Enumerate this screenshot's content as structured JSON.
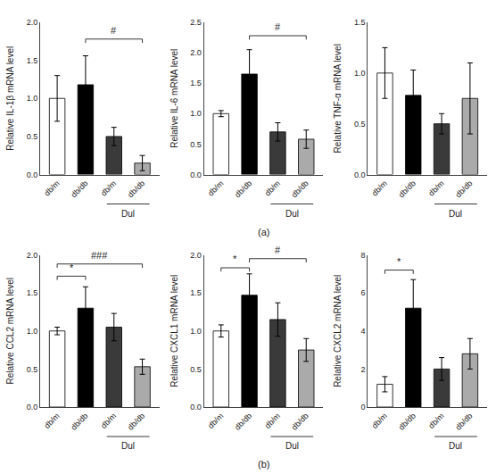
{
  "chart_data": [
    {
      "type": "bar",
      "ylabel": "Relative IL-1β mRNA level",
      "categories": [
        "db/m",
        "db/db",
        "db/m",
        "db/db"
      ],
      "values": [
        1.0,
        1.18,
        0.5,
        0.15
      ],
      "errors": [
        0.3,
        0.38,
        0.12,
        0.1
      ],
      "colors": [
        "white",
        "black",
        "#3a3a3a",
        "#aaaaaa"
      ],
      "ylim": [
        0,
        2.0
      ],
      "yticks": [
        {
          "value": 0,
          "label": "0.0"
        },
        0.5,
        {
          "value": 1,
          "label": "1.0"
        },
        1.5,
        {
          "value": 2,
          "label": "2.0"
        }
      ],
      "grid": false,
      "annotations": [
        {
          "text": "#",
          "x": [
            1,
            3
          ],
          "y": 1.78
        },
        {
          "text": "Dul",
          "x": [
            2,
            3
          ]
        }
      ]
    },
    {
      "type": "bar",
      "ylabel": "Relative IL-6 mRNA level",
      "categories": [
        "db/m",
        "db/db",
        "db/m",
        "db/db"
      ],
      "values": [
        1.0,
        1.65,
        0.7,
        0.58
      ],
      "errors": [
        0.05,
        0.4,
        0.15,
        0.15
      ],
      "colors": [
        "white",
        "black",
        "#3a3a3a",
        "#aaaaaa"
      ],
      "ylim": [
        0,
        2.5
      ],
      "yticks": [
        {
          "value": 0,
          "label": "0.0"
        },
        0.5,
        {
          "value": 1,
          "label": "1.0"
        },
        1.5,
        {
          "value": 2,
          "label": "2.0"
        },
        2.5
      ],
      "grid": false,
      "annotations": [
        {
          "text": "#",
          "x": [
            1,
            3
          ],
          "y": 2.28
        },
        {
          "text": "Dul",
          "x": [
            2,
            3
          ]
        },
        {
          "text": "(a)"
        }
      ]
    },
    {
      "type": "bar",
      "ylabel": "Relative TNF-α mRNA level",
      "categories": [
        "db/m",
        "db/db",
        "db/m",
        "db/db"
      ],
      "values": [
        1.0,
        0.78,
        0.5,
        0.75
      ],
      "errors": [
        0.25,
        0.25,
        0.1,
        0.35
      ],
      "colors": [
        "white",
        "black",
        "#3a3a3a",
        "#aaaaaa"
      ],
      "ylim": [
        0,
        1.5
      ],
      "yticks": [
        {
          "value": 0,
          "label": "0.0"
        },
        0.5,
        {
          "value": 1,
          "label": "1.0"
        },
        1.5
      ],
      "grid": false,
      "annotations": [
        {
          "text": "Dul",
          "x": [
            2,
            3
          ]
        }
      ]
    },
    {
      "type": "bar",
      "ylabel": "Relative CCL2 mRNA level",
      "categories": [
        "db/m",
        "db/db",
        "db/m",
        "db/db"
      ],
      "values": [
        1.0,
        1.3,
        1.05,
        0.53
      ],
      "errors": [
        0.05,
        0.28,
        0.18,
        0.1
      ],
      "colors": [
        "white",
        "black",
        "#3a3a3a",
        "#aaaaaa"
      ],
      "ylim": [
        0,
        2.0
      ],
      "yticks": [
        {
          "value": 0,
          "label": "0.0"
        },
        0.5,
        {
          "value": 1,
          "label": "1.0"
        },
        1.5,
        {
          "value": 2,
          "label": "2.0"
        }
      ],
      "grid": false,
      "annotations": [
        {
          "text": "*",
          "x": [
            0,
            1
          ],
          "y": 1.72
        },
        {
          "text": "###",
          "x": [
            0,
            3
          ],
          "y": 1.88
        },
        {
          "text": "Dul",
          "x": [
            2,
            3
          ]
        }
      ]
    },
    {
      "type": "bar",
      "ylabel": "Relative CXCL1 mRNA level",
      "categories": [
        "db/m",
        "db/db",
        "db/m",
        "db/db"
      ],
      "values": [
        1.0,
        1.47,
        1.15,
        0.75
      ],
      "errors": [
        0.08,
        0.28,
        0.22,
        0.15
      ],
      "colors": [
        "white",
        "black",
        "#3a3a3a",
        "#aaaaaa"
      ],
      "ylim": [
        0,
        2.0
      ],
      "yticks": [
        {
          "value": 0,
          "label": "0.0"
        },
        0.5,
        {
          "value": 1,
          "label": "1.0"
        },
        1.5,
        {
          "value": 2,
          "label": "2.0"
        }
      ],
      "grid": false,
      "annotations": [
        {
          "text": "*",
          "x": [
            0,
            1
          ],
          "y": 1.83
        },
        {
          "text": "#",
          "x": [
            1,
            3
          ],
          "y": 1.95
        },
        {
          "text": "Dul",
          "x": [
            2,
            3
          ]
        },
        {
          "text": "(b)"
        }
      ]
    },
    {
      "type": "bar",
      "ylabel": "Relative CXCL2 mRNA level",
      "categories": [
        "db/m",
        "db/db",
        "db/m",
        "db/db"
      ],
      "values": [
        1.2,
        5.2,
        2.0,
        2.8
      ],
      "errors": [
        0.4,
        1.5,
        0.6,
        0.8
      ],
      "colors": [
        "white",
        "black",
        "#3a3a3a",
        "#aaaaaa"
      ],
      "ylim": [
        0,
        8
      ],
      "yticks": [
        0,
        2,
        4,
        6,
        8
      ],
      "grid": false,
      "annotations": [
        {
          "text": "*",
          "x": [
            0,
            1
          ],
          "y": 7.2
        },
        {
          "text": "Dul",
          "x": [
            2,
            3
          ]
        }
      ]
    }
  ]
}
